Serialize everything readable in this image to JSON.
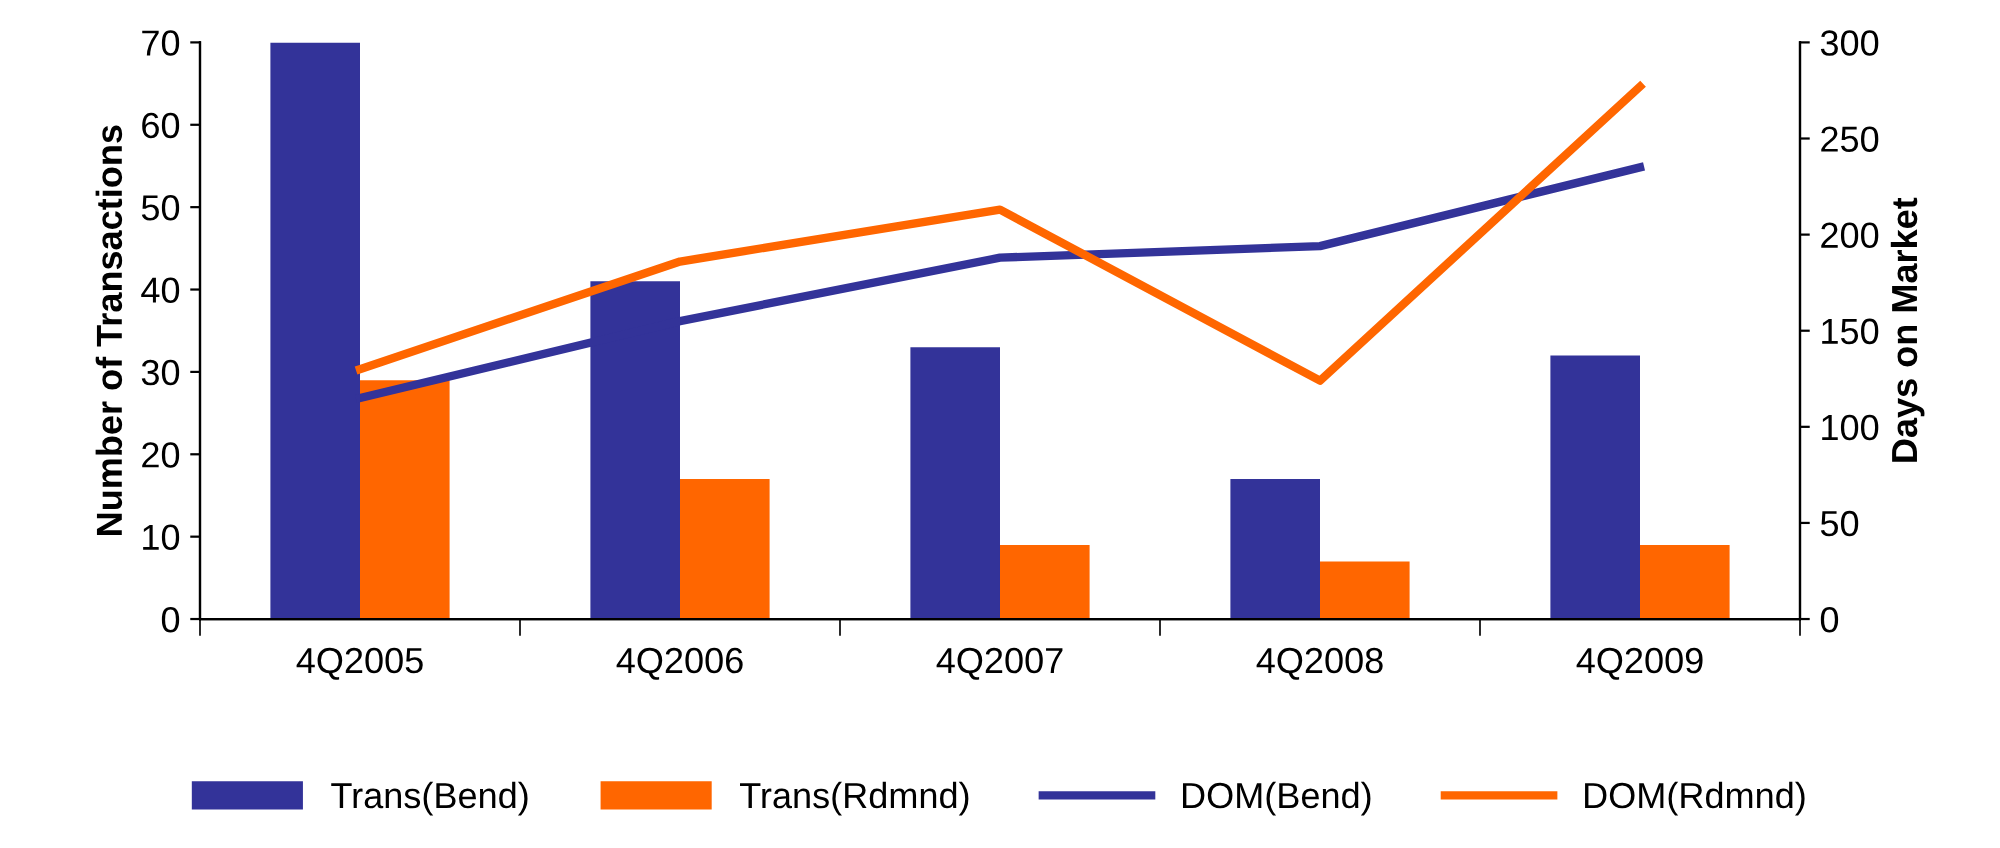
{
  "chart_data": {
    "type": "bar",
    "ylabel": "Number of Transactions",
    "y2label": "Days on Market",
    "categories": [
      "4Q2005",
      "4Q2006",
      "4Q2007",
      "4Q2008",
      "4Q2009"
    ],
    "series": [
      {
        "name": "Trans(Bend)",
        "color": "#333399",
        "values": [
          70,
          41,
          33,
          17,
          32
        ]
      },
      {
        "name": "Trans(Rdmnd)",
        "color": "#ff6600",
        "values": [
          29,
          17,
          9,
          7,
          9
        ]
      },
      {
        "name": "DOM(Bend)",
        "type": "line",
        "axis": "y2",
        "color": "#333399",
        "values": [
          115,
          155,
          188,
          194,
          235
        ]
      },
      {
        "name": "DOM(Rdmnd)",
        "type": "line",
        "axis": "y2",
        "color": "#ff6600",
        "values": [
          130,
          186,
          213,
          124,
          277
        ]
      }
    ],
    "ylim": [
      0,
      70
    ],
    "yticks": [
      0,
      10,
      20,
      30,
      40,
      50,
      60,
      70
    ],
    "y2lim": [
      0,
      300
    ],
    "y2ticks": [
      0,
      50,
      100,
      150,
      200,
      250,
      300
    ],
    "grid": false,
    "legend": "bottom",
    "marker": "none",
    "line_style": "solid"
  }
}
